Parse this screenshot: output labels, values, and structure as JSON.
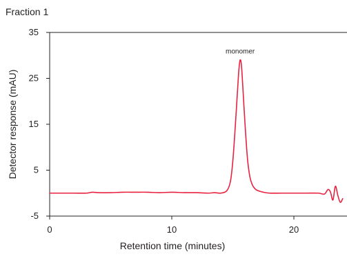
{
  "chart_data": {
    "type": "line",
    "title": "Fraction 1",
    "xlabel": "Retention time (minutes)",
    "ylabel": "Detector response (mAU)",
    "xlim": [
      0,
      24
    ],
    "ylim": [
      -5,
      35
    ],
    "x_ticks": [
      "0",
      "10",
      "20"
    ],
    "y_ticks": [
      "35",
      "25",
      "15",
      "5",
      "-5"
    ],
    "grid": false,
    "line_color": "#e8213f",
    "annotations": [
      {
        "text": "monomer",
        "x": 15.6,
        "y": 29.2
      }
    ],
    "series": [
      {
        "x": [
          0,
          1,
          2,
          3,
          3.5,
          4,
          5,
          6,
          7,
          8,
          9,
          10,
          11,
          12,
          13,
          13.5,
          14,
          14.5,
          14.8,
          15.0,
          15.2,
          15.4,
          15.5,
          15.6,
          15.7,
          15.8,
          16.0,
          16.2,
          16.4,
          16.6,
          16.8,
          17.0,
          17.5,
          18,
          19,
          20,
          21,
          22,
          22.5,
          22.8,
          23.0,
          23.2,
          23.4,
          23.6,
          23.8,
          24.0
        ],
        "y": [
          0.0,
          0.0,
          0.0,
          0.0,
          0.2,
          0.1,
          0.1,
          0.2,
          0.2,
          0.2,
          0.1,
          0.2,
          0.1,
          0.1,
          0.0,
          0.1,
          0.0,
          0.5,
          2.5,
          7.0,
          14.5,
          23.0,
          27.0,
          29.0,
          28.0,
          24.0,
          15.0,
          7.5,
          3.5,
          1.8,
          1.0,
          0.6,
          0.2,
          0.0,
          0.0,
          0.0,
          0.0,
          0.0,
          -0.2,
          0.8,
          0.2,
          -1.5,
          1.5,
          -0.5,
          -2.0,
          -1.2
        ]
      }
    ]
  }
}
